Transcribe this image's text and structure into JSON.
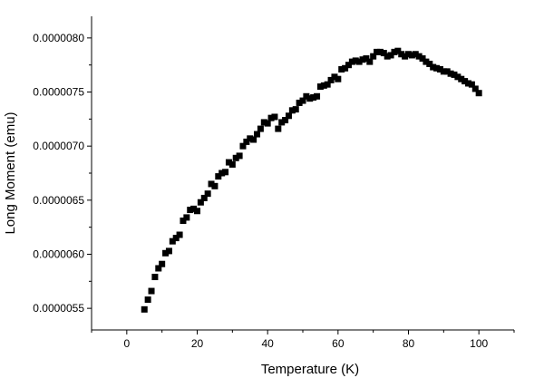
{
  "chart_data": {
    "type": "scatter",
    "title": "",
    "xlabel": "Temperature (K)",
    "ylabel": "Long Moment (emu)",
    "xlim": [
      -10,
      110
    ],
    "ylim": [
      5.3e-06,
      8.2e-06
    ],
    "xticks": [
      0,
      20,
      40,
      60,
      80,
      100
    ],
    "xtick_labels": [
      "0",
      "20",
      "40",
      "60",
      "80",
      "100"
    ],
    "yticks": [
      5.5e-06,
      6e-06,
      6.5e-06,
      7e-06,
      7.5e-06,
      8e-06
    ],
    "ytick_labels": [
      "0.0000055",
      "0.0000060",
      "0.0000065",
      "0.0000070",
      "0.0000075",
      "0.0000080"
    ],
    "grid": false,
    "marker": "square",
    "color": "#000000",
    "series": [
      {
        "x": [
          5,
          6,
          7,
          8,
          9,
          10,
          11,
          12,
          13,
          14,
          15,
          16,
          17,
          18,
          19,
          20,
          21,
          22,
          23,
          24,
          25,
          26,
          27,
          28,
          29,
          30,
          31,
          32,
          33,
          34,
          35,
          36,
          37,
          38,
          39,
          40,
          41,
          42,
          43,
          44,
          45,
          46,
          47,
          48,
          49,
          50,
          51,
          52,
          53,
          54,
          55,
          56,
          57,
          58,
          59,
          60,
          61,
          62,
          63,
          64,
          65,
          66,
          67,
          68,
          69,
          70,
          71,
          72,
          73,
          74,
          75,
          76,
          77,
          78,
          79,
          80,
          81,
          82,
          83,
          84,
          85,
          86,
          87,
          88,
          89,
          90,
          91,
          92,
          93,
          94,
          95,
          96,
          97,
          98,
          99,
          100
        ],
        "y": [
          5.49e-06,
          5.58e-06,
          5.66e-06,
          5.79e-06,
          5.87e-06,
          5.91e-06,
          6.01e-06,
          6.03e-06,
          6.12e-06,
          6.15e-06,
          6.18e-06,
          6.31e-06,
          6.34e-06,
          6.41e-06,
          6.42e-06,
          6.4e-06,
          6.48e-06,
          6.52e-06,
          6.56e-06,
          6.65e-06,
          6.63e-06,
          6.72e-06,
          6.75e-06,
          6.76e-06,
          6.85e-06,
          6.83e-06,
          6.89e-06,
          6.91e-06,
          7e-06,
          7.04e-06,
          7.07e-06,
          7.06e-06,
          7.11e-06,
          7.16e-06,
          7.22e-06,
          7.21e-06,
          7.26e-06,
          7.27e-06,
          7.16e-06,
          7.22e-06,
          7.24e-06,
          7.28e-06,
          7.33e-06,
          7.34e-06,
          7.4e-06,
          7.42e-06,
          7.46e-06,
          7.44e-06,
          7.45e-06,
          7.46e-06,
          7.55e-06,
          7.56e-06,
          7.57e-06,
          7.61e-06,
          7.64e-06,
          7.62e-06,
          7.71e-06,
          7.72e-06,
          7.75e-06,
          7.78e-06,
          7.79e-06,
          7.78e-06,
          7.8e-06,
          7.81e-06,
          7.78e-06,
          7.83e-06,
          7.87e-06,
          7.87e-06,
          7.86e-06,
          7.83e-06,
          7.84e-06,
          7.87e-06,
          7.88e-06,
          7.85e-06,
          7.83e-06,
          7.85e-06,
          7.84e-06,
          7.85e-06,
          7.83e-06,
          7.81e-06,
          7.78e-06,
          7.76e-06,
          7.73e-06,
          7.72e-06,
          7.71e-06,
          7.69e-06,
          7.69e-06,
          7.67e-06,
          7.66e-06,
          7.64e-06,
          7.62e-06,
          7.6e-06,
          7.58e-06,
          7.57e-06,
          7.53e-06,
          7.49e-06
        ]
      }
    ]
  }
}
